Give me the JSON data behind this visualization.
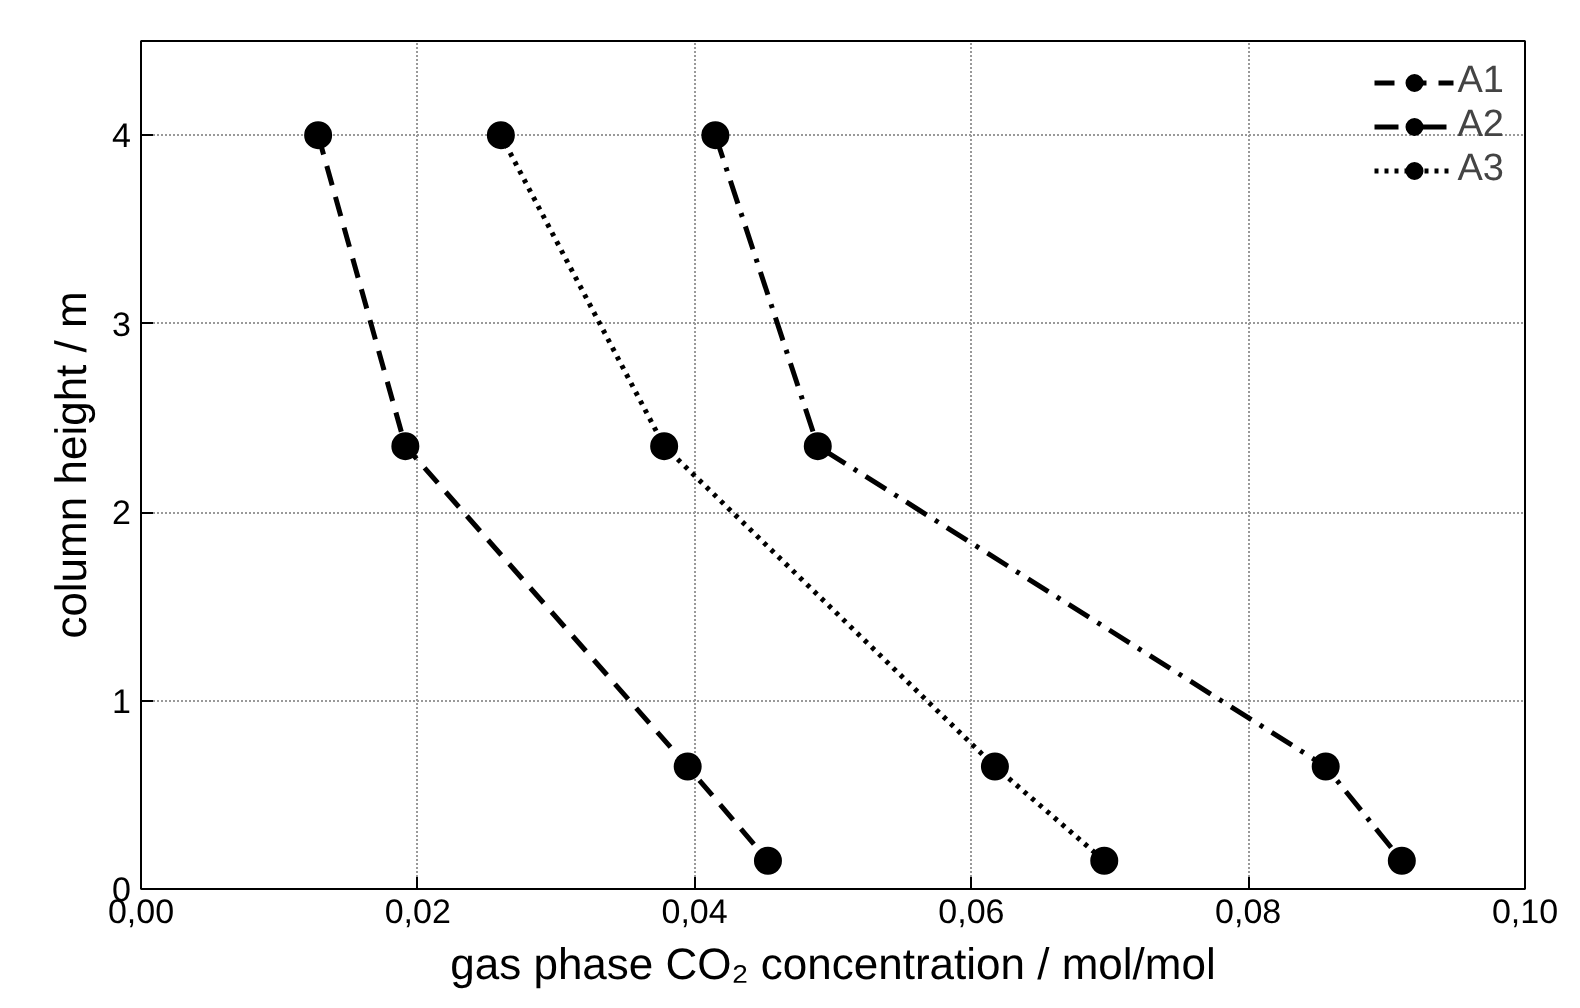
{
  "chart_data": {
    "type": "line",
    "xlabel": "gas phase CO₂ concentration / mol/mol",
    "ylabel": "column height / m",
    "xlim": [
      0,
      0.1
    ],
    "ylim": [
      0,
      4.5
    ],
    "xticks": [
      {
        "value": 0,
        "label": "0,00"
      },
      {
        "value": 0.02,
        "label": "0,02"
      },
      {
        "value": 0.04,
        "label": "0,04"
      },
      {
        "value": 0.06,
        "label": "0,06"
      },
      {
        "value": 0.08,
        "label": "0,08"
      },
      {
        "value": 0.1,
        "label": "0,10"
      }
    ],
    "yticks": [
      0,
      1,
      2,
      3,
      4
    ],
    "grid": true,
    "legend": "top right",
    "marker": "circle",
    "series": [
      {
        "name": "A1",
        "color": "#000000",
        "line_style": "dashed",
        "x": [
          0.0128,
          0.0191,
          0.0395,
          0.0453
        ],
        "values": [
          4,
          2.35,
          0.65,
          0.15
        ]
      },
      {
        "name": "A2",
        "color": "#000000",
        "line_style": "dashdot",
        "x": [
          0.0415,
          0.0489,
          0.0856,
          0.0911
        ],
        "values": [
          4,
          2.35,
          0.65,
          0.15
        ]
      },
      {
        "name": "A3",
        "color": "#000000",
        "line_style": "dotted",
        "x": [
          0.026,
          0.0378,
          0.0617,
          0.0696
        ],
        "values": [
          4,
          2.35,
          0.65,
          0.15
        ]
      }
    ]
  }
}
